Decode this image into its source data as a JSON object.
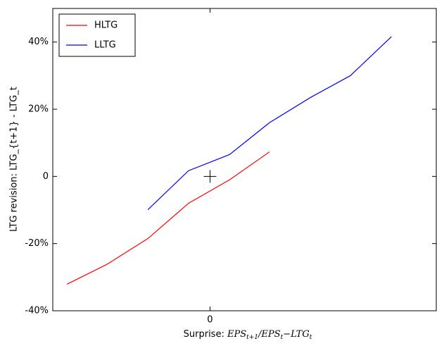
{
  "chart_data": {
    "type": "line",
    "xlabel": "Surprise:",
    "xlabel_math": [
      [
        "EPS",
        "t+1"
      ],
      [
        "/EPS",
        "t"
      ],
      [
        "−LTG",
        "t"
      ]
    ],
    "ylabel": "LTG revision: LTG_{t+1} - LTG_t",
    "xlim": [
      -0.041,
      0.059
    ],
    "ylim": [
      -40,
      50
    ],
    "xticks": [
      0
    ],
    "yticks": [
      {
        "value": -40,
        "label": "-40%"
      },
      {
        "value": -20,
        "label": "-20%"
      },
      0,
      {
        "value": 20,
        "label": "20%"
      },
      {
        "value": 40,
        "label": "40%"
      }
    ],
    "grid": false,
    "legend": "upper left",
    "crosshair": {
      "x": 0,
      "y": 0
    },
    "series": [
      {
        "name": "HLTG",
        "color": "#ff0000",
        "x": [
          -0.0373,
          -0.0269,
          -0.0162,
          -0.0056,
          0.0051,
          0.0155
        ],
        "values": [
          -32.1,
          -26.2,
          -18.5,
          -8.0,
          -1.0,
          7.3
        ]
      },
      {
        "name": "LLTG",
        "color": "#0000ff",
        "x": [
          -0.0162,
          -0.0056,
          0.0051,
          0.0155,
          0.0262,
          0.0366,
          0.0473
        ],
        "values": [
          -9.9,
          1.7,
          6.5,
          16.0,
          23.5,
          30.0,
          41.6
        ]
      }
    ]
  }
}
